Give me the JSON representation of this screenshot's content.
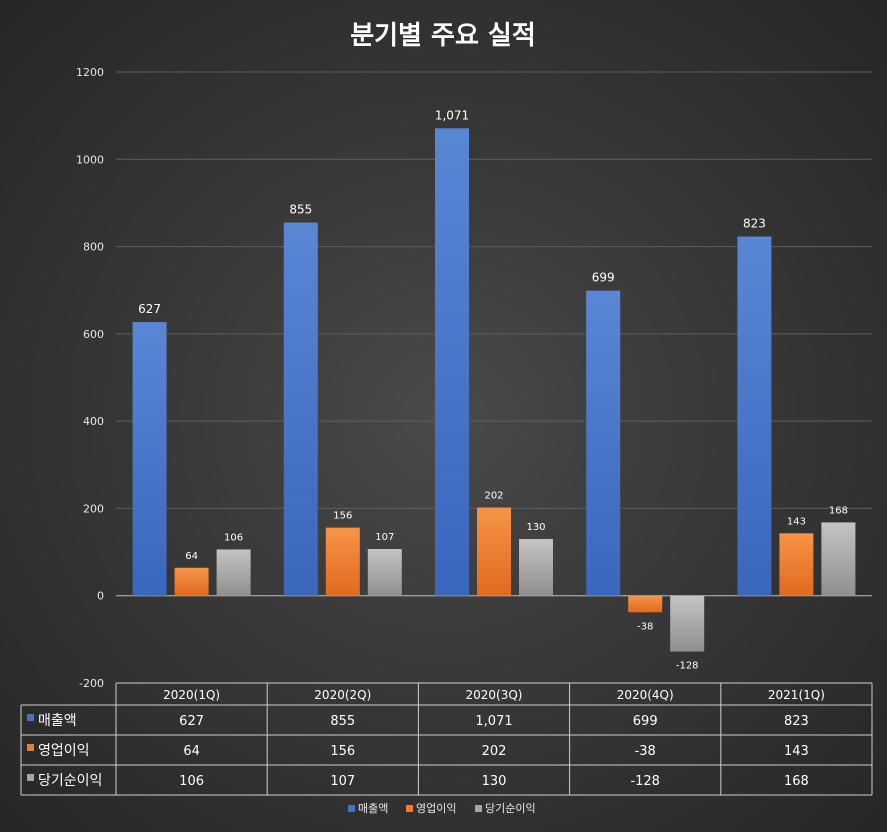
{
  "chart_data": {
    "type": "bar",
    "title": "분기별 주요 실적",
    "categories": [
      "2020(1Q)",
      "2020(2Q)",
      "2020(3Q)",
      "2020(4Q)",
      "2021(1Q)"
    ],
    "series": [
      {
        "name": "매출액",
        "values": [
          627,
          855,
          1071,
          699,
          823
        ],
        "labels": [
          "627",
          "855",
          "1,071",
          "699",
          "823"
        ],
        "color": "#4472c4"
      },
      {
        "name": "영업이익",
        "values": [
          64,
          156,
          202,
          -38,
          143
        ],
        "labels": [
          "64",
          "156",
          "202",
          "-38",
          "143"
        ],
        "color": "#ed7d31"
      },
      {
        "name": "당기순이익",
        "values": [
          106,
          107,
          130,
          -128,
          168
        ],
        "labels": [
          "106",
          "107",
          "130",
          "-128",
          "168"
        ],
        "color": "#a5a5a5"
      }
    ],
    "ylim": [
      -200,
      1200
    ],
    "yticks": [
      -200,
      0,
      200,
      400,
      600,
      800,
      1000,
      1200
    ],
    "grid": true,
    "legend": "bottom",
    "data_table": true
  }
}
